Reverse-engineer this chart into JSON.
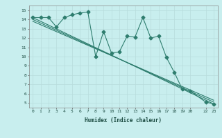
{
  "title": "",
  "xlabel": "Humidex (Indice chaleur)",
  "ylabel": "",
  "bg_color": "#c8eeee",
  "grid_color": "#b8dcdc",
  "line_color": "#2e7d6e",
  "xlim": [
    -0.5,
    23.5
  ],
  "ylim": [
    4.5,
    15.5
  ],
  "xticks": [
    0,
    1,
    2,
    3,
    4,
    5,
    6,
    7,
    8,
    9,
    10,
    11,
    12,
    13,
    14,
    15,
    16,
    17,
    18,
    19,
    20,
    22,
    23
  ],
  "yticks": [
    5,
    6,
    7,
    8,
    9,
    10,
    11,
    12,
    13,
    14,
    15
  ],
  "data_line": {
    "x": [
      0,
      1,
      2,
      3,
      4,
      5,
      6,
      7,
      8,
      9,
      10,
      11,
      12,
      13,
      14,
      15,
      16,
      17,
      18,
      19,
      20,
      22,
      23
    ],
    "y": [
      14.2,
      14.2,
      14.2,
      13.2,
      14.2,
      14.5,
      14.7,
      14.8,
      10.0,
      12.7,
      10.4,
      10.5,
      12.2,
      12.1,
      14.2,
      12.0,
      12.2,
      9.9,
      8.3,
      6.5,
      6.3,
      5.1,
      4.9
    ]
  },
  "trend_line1": {
    "x": [
      0,
      23
    ],
    "y": [
      14.2,
      4.9
    ]
  },
  "trend_line2": {
    "x": [
      0,
      23
    ],
    "y": [
      14.0,
      5.1
    ]
  },
  "trend_line3": {
    "x": [
      0,
      23
    ],
    "y": [
      13.8,
      5.3
    ]
  }
}
